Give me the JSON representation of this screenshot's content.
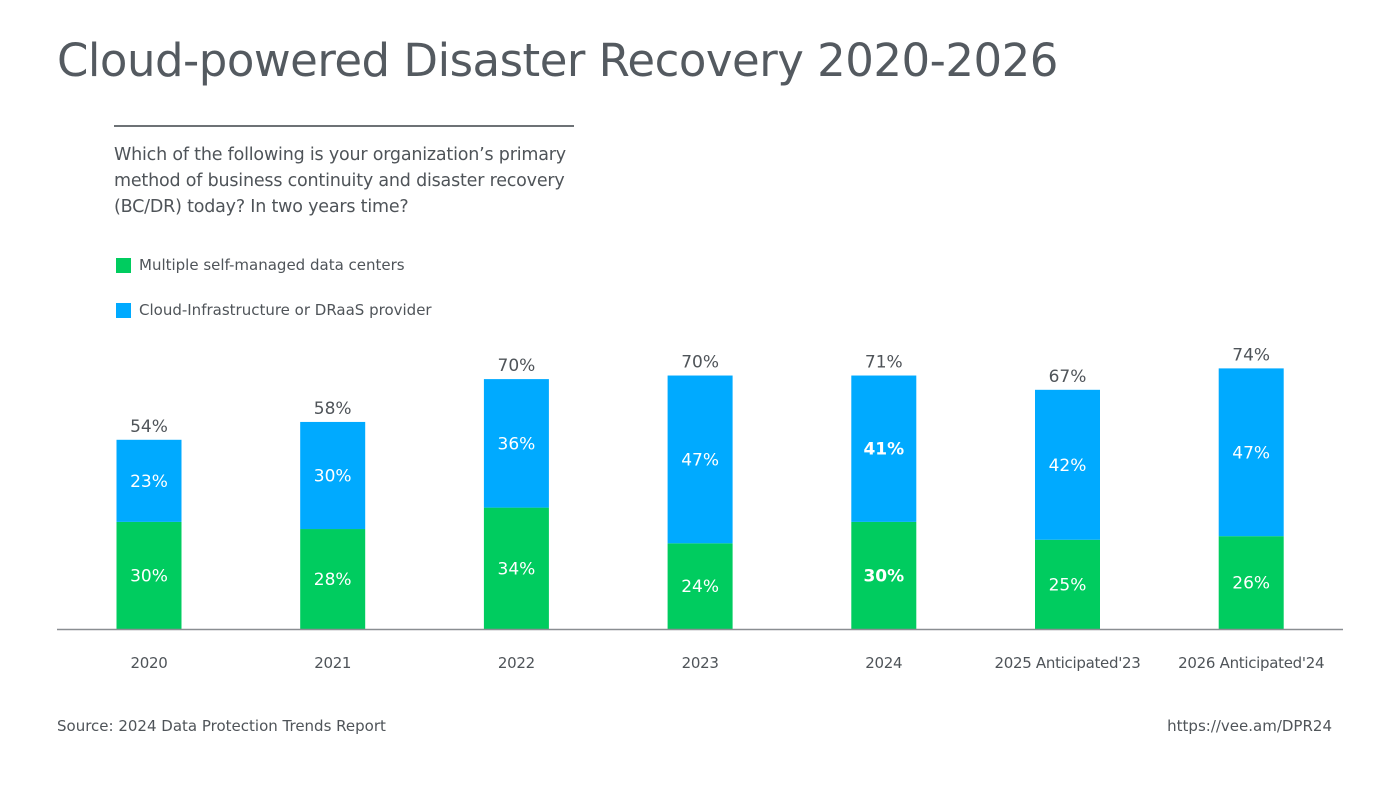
{
  "title": "Cloud-powered Disaster Recovery 2020-2026",
  "question": "Which of the following is your organization’s primary method of business continuity and disaster recovery (BC/DR) today?  In two years time?",
  "source": "Source: 2024 Data Protection Trends Report",
  "url": "https://vee.am/DPR24",
  "colors": {
    "green": "#00cc5f",
    "blue": "#00aaff",
    "text": "#4f5459",
    "axis": "#8a8e92"
  },
  "chart_data": {
    "type": "bar",
    "stacked": true,
    "title": "Cloud-powered Disaster Recovery 2020-2026",
    "xlabel": "",
    "ylabel": "",
    "ylim": [
      0,
      80
    ],
    "grid": false,
    "legend_position": "top-left",
    "categories": [
      "2020",
      "2021",
      "2022",
      "2023",
      "2024",
      "2025 Anticipated'23",
      "2026 Anticipated'24"
    ],
    "series": [
      {
        "name": "Multiple self-managed data centers",
        "color": "#00cc5f",
        "values": [
          30,
          28,
          34,
          24,
          30,
          25,
          26
        ],
        "labels": [
          "30%",
          "28%",
          "34%",
          "24%",
          "30%",
          "25%",
          "26%"
        ]
      },
      {
        "name": "Cloud-Infrastructure or DRaaS provider",
        "color": "#00aaff",
        "values": [
          23,
          30,
          36,
          47,
          41,
          42,
          47
        ],
        "labels": [
          "23%",
          "30%",
          "36%",
          "47%",
          "41%",
          "42%",
          "47%"
        ]
      }
    ],
    "totals": [
      54,
      58,
      70,
      70,
      71,
      67,
      74
    ],
    "total_labels": [
      "54%",
      "58%",
      "70%",
      "70%",
      "71%",
      "67%",
      "74%"
    ],
    "bold_category_index": 4
  }
}
